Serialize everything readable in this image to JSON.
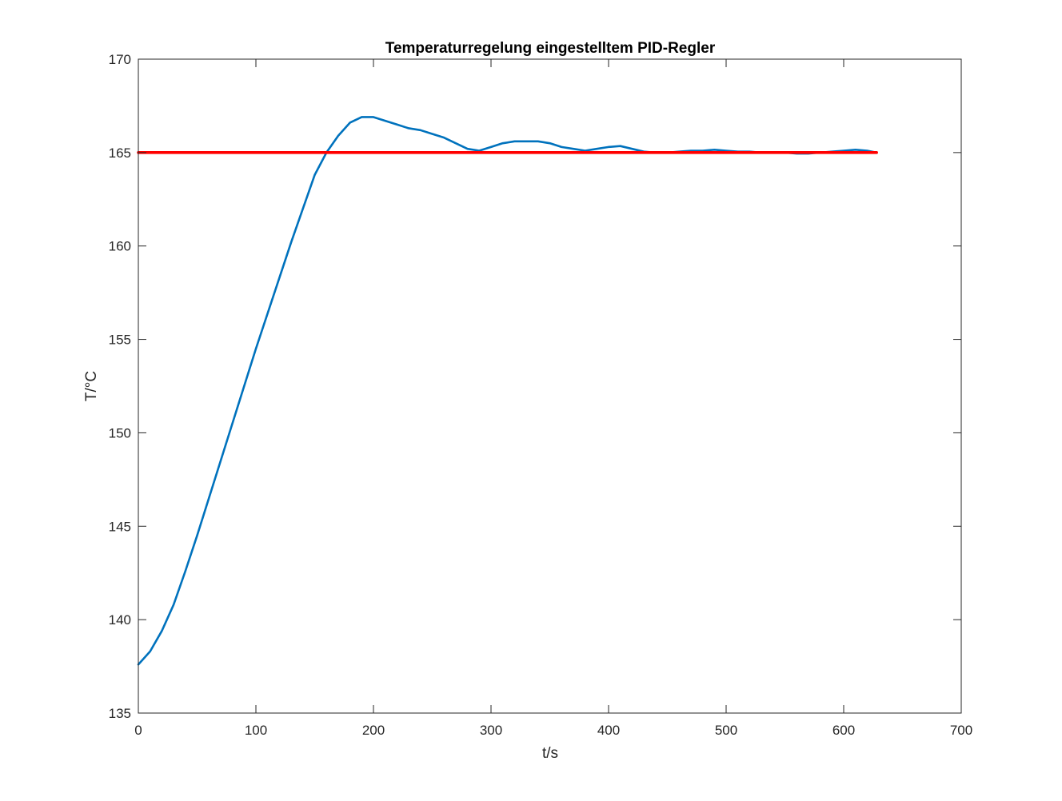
{
  "chart_data": {
    "type": "line",
    "title": "Temperaturregelung eingestelltem PID-Regler",
    "xlabel": "t/s",
    "ylabel": "T/°C",
    "xlim": [
      0,
      700
    ],
    "ylim": [
      135,
      170
    ],
    "xticks": [
      0,
      100,
      200,
      300,
      400,
      500,
      600,
      700
    ],
    "yticks": [
      135,
      140,
      145,
      150,
      155,
      160,
      165,
      170
    ],
    "grid": false,
    "legend": "none",
    "series": [
      {
        "color": "#0072BD",
        "x": [
          0,
          10,
          20,
          30,
          40,
          50,
          60,
          70,
          80,
          90,
          100,
          110,
          120,
          130,
          140,
          150,
          160,
          170,
          180,
          190,
          200,
          210,
          220,
          230,
          240,
          250,
          260,
          270,
          280,
          290,
          300,
          310,
          320,
          330,
          340,
          350,
          360,
          370,
          380,
          390,
          400,
          410,
          420,
          430,
          440,
          450,
          460,
          470,
          480,
          490,
          500,
          510,
          520,
          530,
          540,
          550,
          560,
          570,
          580,
          590,
          600,
          610,
          620,
          628
        ],
        "y": [
          137.6,
          138.3,
          139.4,
          140.8,
          142.6,
          144.5,
          146.5,
          148.5,
          150.5,
          152.5,
          154.5,
          156.4,
          158.3,
          160.2,
          162.0,
          163.8,
          165.0,
          165.9,
          166.6,
          166.9,
          166.9,
          166.7,
          166.5,
          166.3,
          166.2,
          166.0,
          165.8,
          165.5,
          165.2,
          165.1,
          165.3,
          165.5,
          165.6,
          165.6,
          165.6,
          165.5,
          165.3,
          165.2,
          165.1,
          165.2,
          165.3,
          165.35,
          165.2,
          165.05,
          165.0,
          165.0,
          165.05,
          165.1,
          165.1,
          165.15,
          165.1,
          165.05,
          165.05,
          165.0,
          165.0,
          165.0,
          164.95,
          164.95,
          165.0,
          165.05,
          165.1,
          165.15,
          165.1,
          165.0
        ]
      },
      {
        "color": "#FF0000",
        "x": [
          0,
          628
        ],
        "y": [
          165,
          165
        ]
      }
    ]
  }
}
